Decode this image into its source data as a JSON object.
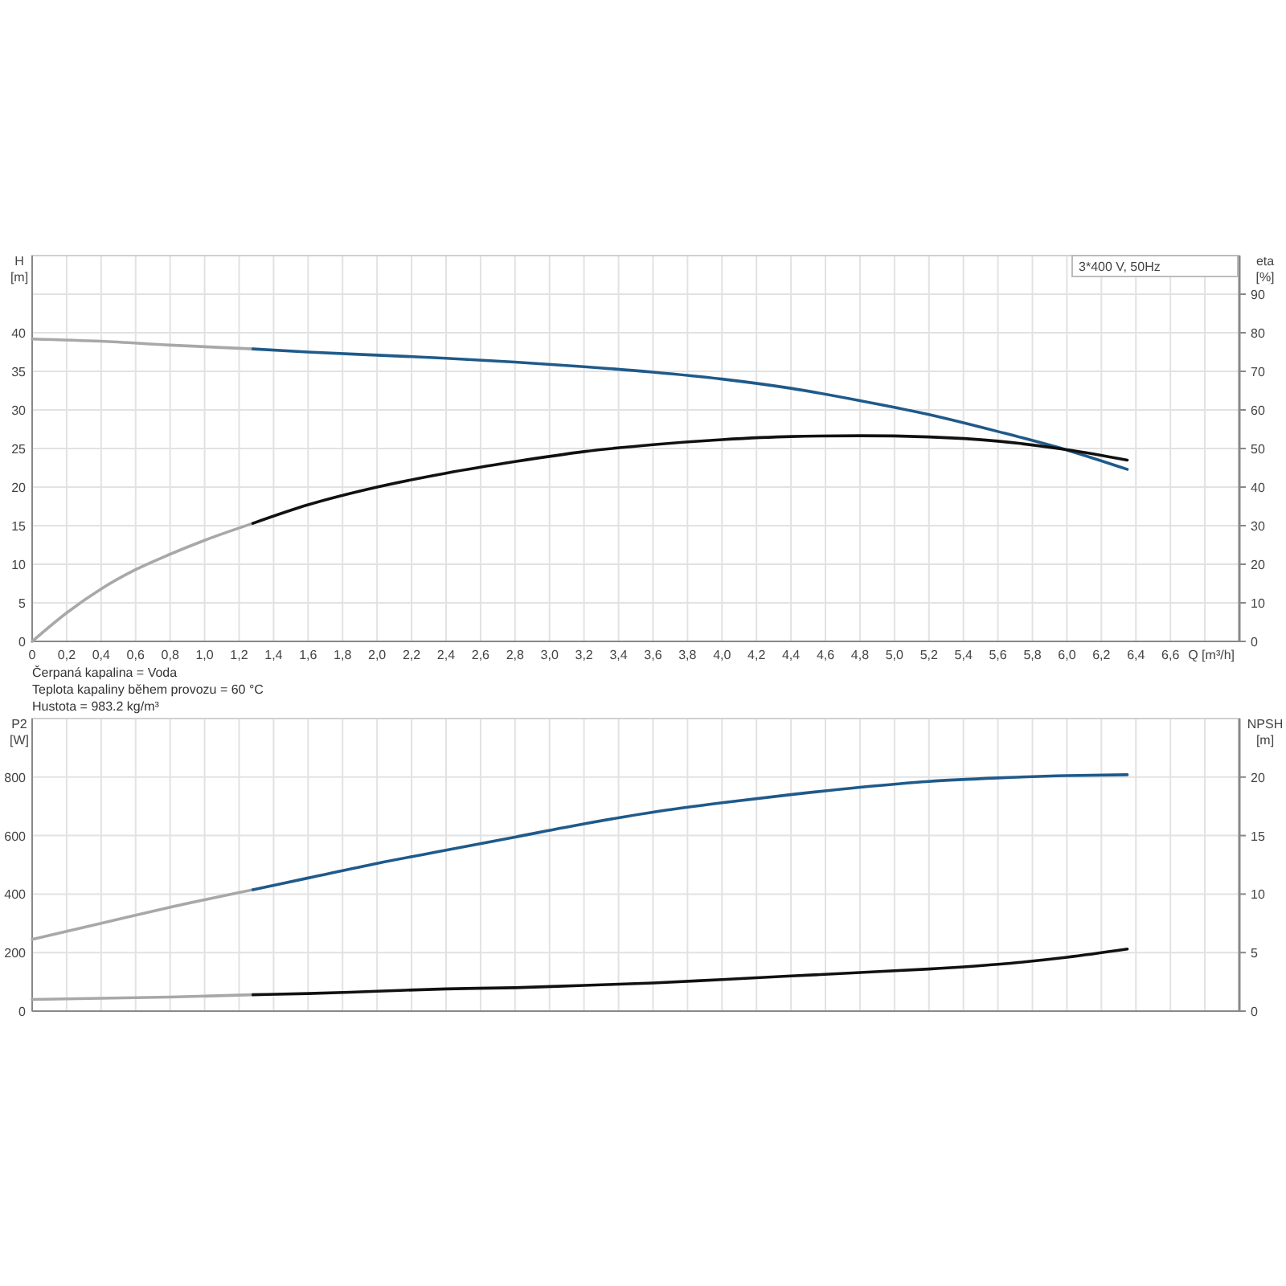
{
  "chart_data": [
    {
      "type": "line",
      "title": "3*400 V, 50Hz",
      "xlabel": "Q [m³/h]",
      "ylabel": "H [m]",
      "y2label": "eta [%]",
      "xlim": [
        0,
        7
      ],
      "xticks": [
        0,
        {
          "value": 0.2,
          "label": "0,2"
        },
        {
          "value": 0.4,
          "label": "0,4"
        },
        {
          "value": 0.6,
          "label": "0,6"
        },
        {
          "value": 0.8,
          "label": "0,8"
        },
        {
          "value": 1,
          "label": "1,0"
        },
        {
          "value": 1.2,
          "label": "1,2"
        },
        {
          "value": 1.4,
          "label": "1,4"
        },
        {
          "value": 1.6,
          "label": "1,6"
        },
        {
          "value": 1.8,
          "label": "1,8"
        },
        {
          "value": 2,
          "label": "2,0"
        },
        {
          "value": 2.2,
          "label": "2,2"
        },
        {
          "value": 2.4,
          "label": "2,4"
        },
        {
          "value": 2.6,
          "label": "2,6"
        },
        {
          "value": 2.8,
          "label": "2,8"
        },
        {
          "value": 3,
          "label": "3,0"
        },
        {
          "value": 3.2,
          "label": "3,2"
        },
        {
          "value": 3.4,
          "label": "3,4"
        },
        {
          "value": 3.6,
          "label": "3,6"
        },
        {
          "value": 3.8,
          "label": "3,8"
        },
        {
          "value": 4,
          "label": "4,0"
        },
        {
          "value": 4.2,
          "label": "4,2"
        },
        {
          "value": 4.4,
          "label": "4,4"
        },
        {
          "value": 4.6,
          "label": "4,6"
        },
        {
          "value": 4.8,
          "label": "4,8"
        },
        {
          "value": 5,
          "label": "5,0"
        },
        {
          "value": 5.2,
          "label": "5,2"
        },
        {
          "value": 5.4,
          "label": "5,4"
        },
        {
          "value": 5.6,
          "label": "5,6"
        },
        {
          "value": 5.8,
          "label": "5,8"
        },
        {
          "value": 6,
          "label": "6,0"
        },
        {
          "value": 6.2,
          "label": "6,2"
        },
        {
          "value": 6.4,
          "label": "6,4"
        },
        {
          "value": 6.6,
          "label": "6,6"
        },
        {
          "value": 6.8,
          "label": null
        }
      ],
      "ylim": [
        0,
        50
      ],
      "yticks": [
        0,
        5,
        10,
        15,
        20,
        25,
        30,
        35,
        40,
        {
          "value": 45,
          "label": null
        }
      ],
      "y2lim": [
        0,
        100
      ],
      "y2ticks": [
        0,
        10,
        20,
        30,
        40,
        50,
        60,
        70,
        80,
        90
      ],
      "grid": true,
      "annotations": [
        "Čerpaná kapalina = Voda",
        "Teplota kapaliny během provozu = 60 °C",
        "Hustota = 983.2 kg/m³"
      ],
      "series": [
        {
          "color": "#a8a8a8",
          "x": [
            0,
            0.4,
            0.8,
            1.28
          ],
          "values": [
            39.2,
            38.9,
            38.4,
            37.9
          ]
        },
        {
          "color": "#1f5a8a",
          "x": [
            1.28,
            1.6,
            2.0,
            2.4,
            2.8,
            3.2,
            3.6,
            4.0,
            4.4,
            4.8,
            5.2,
            5.6,
            6.0,
            6.35
          ],
          "values": [
            37.9,
            37.5,
            37.1,
            36.7,
            36.2,
            35.6,
            34.9,
            34.0,
            32.8,
            31.2,
            29.4,
            27.2,
            24.8,
            22.3
          ]
        },
        {
          "color": "#a8a8a8",
          "axis": "y2",
          "x": [
            0,
            0.2,
            0.4,
            0.6,
            0.8,
            1.0,
            1.28
          ],
          "values": [
            0,
            7.4,
            13.6,
            18.6,
            22.6,
            26.2,
            30.6
          ]
        },
        {
          "color": "#111111",
          "axis": "y2",
          "x": [
            1.28,
            1.6,
            2.0,
            2.4,
            2.8,
            3.2,
            3.6,
            4.0,
            4.4,
            4.8,
            5.2,
            5.6,
            6.0,
            6.35
          ],
          "values": [
            30.6,
            35.4,
            40,
            43.6,
            46.6,
            49.2,
            51,
            52.3,
            53.1,
            53.3,
            53.0,
            51.9,
            49.7,
            47.0
          ]
        }
      ]
    },
    {
      "type": "line",
      "ylabel": "P2 [W]",
      "y2label": "NPSH [m]",
      "tick_labels": "y",
      "xlim": [
        0,
        7
      ],
      "xticks": [
        0,
        0.2,
        0.4,
        0.6,
        0.8,
        1,
        1.2,
        1.4,
        1.6,
        1.8,
        2,
        2.2,
        2.4,
        2.6,
        2.8,
        3,
        3.2,
        3.4,
        3.6,
        3.8,
        4,
        4.2,
        4.4,
        4.6,
        4.8,
        5,
        5.2,
        5.4,
        5.6,
        5.8,
        6,
        6.2,
        6.4,
        6.6,
        6.8
      ],
      "ylim": [
        0,
        1000
      ],
      "yticks": [
        0,
        200,
        400,
        600,
        800
      ],
      "y2lim": [
        0,
        25
      ],
      "y2ticks": [
        0,
        5,
        10,
        15,
        20
      ],
      "grid": true,
      "series": [
        {
          "color": "#a8a8a8",
          "x": [
            0,
            0.4,
            0.8,
            1.28
          ],
          "values": [
            245,
            300,
            355,
            415
          ]
        },
        {
          "color": "#1f5a8a",
          "x": [
            1.28,
            1.6,
            2.0,
            2.4,
            2.8,
            3.2,
            3.6,
            4.0,
            4.4,
            4.8,
            5.2,
            5.6,
            6.0,
            6.35
          ],
          "values": [
            415,
            455,
            505,
            550,
            595,
            640,
            680,
            712,
            740,
            765,
            785,
            797,
            805,
            808
          ]
        },
        {
          "color": "#a8a8a8",
          "axis": "y2",
          "x": [
            0,
            0.4,
            0.8,
            1.28
          ],
          "values": [
            1.0,
            1.1,
            1.2,
            1.4
          ]
        },
        {
          "color": "#111111",
          "axis": "y2",
          "x": [
            1.28,
            1.6,
            2.0,
            2.4,
            2.8,
            3.2,
            3.6,
            4.0,
            4.4,
            4.8,
            5.2,
            5.6,
            6.0,
            6.35
          ],
          "values": [
            1.4,
            1.5,
            1.7,
            1.9,
            2.0,
            2.2,
            2.4,
            2.7,
            3.0,
            3.3,
            3.6,
            4.0,
            4.6,
            5.3
          ]
        }
      ]
    }
  ]
}
